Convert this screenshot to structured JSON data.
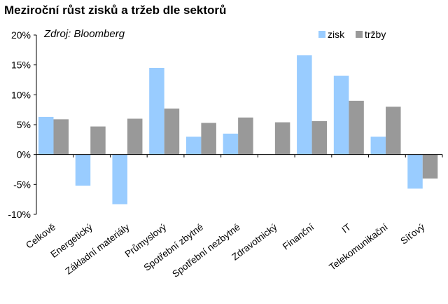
{
  "chart_data": {
    "type": "bar",
    "title": "Meziroční růst zisků a tržeb dle sektorů",
    "source": "Zdroj: Bloomberg",
    "categories": [
      "Celkově",
      "Energetický",
      "Základní materiály",
      "Průmyslový",
      "Spotřební zbytné",
      "Spotřební nezbytné",
      "Zdravotnický",
      "Finanční",
      "IT",
      "Telekomunikační",
      "Síťový"
    ],
    "series": [
      {
        "name": "zisk",
        "color": "#99ccff",
        "values": [
          6.3,
          -5.2,
          -8.3,
          14.5,
          3.0,
          3.5,
          null,
          16.6,
          13.2,
          3.0,
          -5.7
        ]
      },
      {
        "name": "tržby",
        "color": "#999999",
        "values": [
          5.9,
          4.7,
          6.0,
          7.7,
          5.3,
          6.2,
          5.4,
          5.6,
          9.0,
          8.0,
          -4.0
        ]
      }
    ],
    "ylim": [
      -10,
      20
    ],
    "yticks": [
      -10,
      -5,
      0,
      5,
      10,
      15,
      20
    ],
    "ytick_labels": [
      "-10%",
      "-5%",
      "0%",
      "5%",
      "10%",
      "15%",
      "20%"
    ],
    "xlabel": "",
    "ylabel": "",
    "legend": "top-right"
  }
}
